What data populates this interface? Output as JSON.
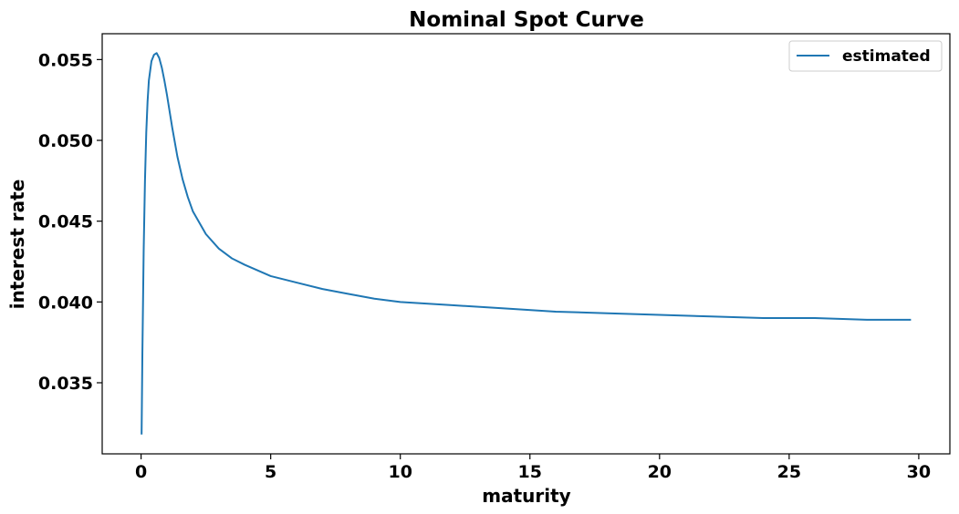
{
  "chart_data": {
    "type": "line",
    "title": "Nominal Spot Curve",
    "xlabel": "maturity",
    "ylabel": "interest rate",
    "xlim": [
      -1.5,
      31.2
    ],
    "ylim": [
      0.0306,
      0.0566
    ],
    "x_ticks": [
      0,
      5,
      10,
      15,
      20,
      25,
      30
    ],
    "x_tick_labels": [
      "0",
      "5",
      "10",
      "15",
      "20",
      "25",
      "30"
    ],
    "y_ticks": [
      0.035,
      0.04,
      0.045,
      0.05,
      0.055
    ],
    "y_tick_labels": [
      "0.035",
      "0.040",
      "0.045",
      "0.050",
      "0.055"
    ],
    "grid": false,
    "legend": {
      "position": "top-right",
      "entries": [
        "estimated"
      ]
    },
    "series": [
      {
        "name": "estimated",
        "color": "#1f77b4",
        "x": [
          0.02,
          0.05,
          0.1,
          0.15,
          0.2,
          0.25,
          0.3,
          0.4,
          0.5,
          0.6,
          0.7,
          0.8,
          0.9,
          1.0,
          1.2,
          1.4,
          1.6,
          1.8,
          2.0,
          2.5,
          3.0,
          3.5,
          4.0,
          5.0,
          6.0,
          7.0,
          8.0,
          9.0,
          10.0,
          12.0,
          14.0,
          16.0,
          18.0,
          20.0,
          22.0,
          24.0,
          26.0,
          28.0,
          29.7
        ],
        "y": [
          0.0318,
          0.0368,
          0.0432,
          0.0475,
          0.0505,
          0.0524,
          0.0537,
          0.0549,
          0.0553,
          0.0554,
          0.0551,
          0.0545,
          0.0537,
          0.0528,
          0.0508,
          0.049,
          0.0476,
          0.0465,
          0.0456,
          0.0442,
          0.0433,
          0.0427,
          0.0423,
          0.0416,
          0.0412,
          0.0408,
          0.0405,
          0.0402,
          0.04,
          0.0398,
          0.0396,
          0.0394,
          0.0393,
          0.0392,
          0.0391,
          0.039,
          0.039,
          0.0389,
          0.0389
        ]
      }
    ]
  }
}
